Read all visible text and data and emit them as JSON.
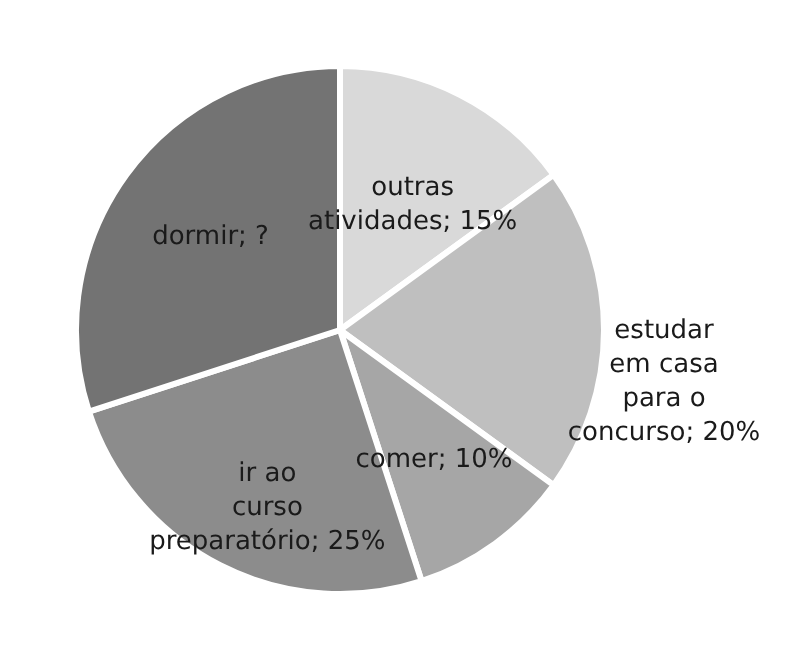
{
  "chart_data": {
    "type": "pie",
    "categories": [
      "outras atividades",
      "estudar em casa para o concurso",
      "comer",
      "ir ao curso preparatório",
      "dormir"
    ],
    "values": [
      15,
      20,
      10,
      25,
      30
    ],
    "value_labels": [
      "15%",
      "20%",
      "10%",
      "25%",
      "?"
    ],
    "colors": [
      "#d9d9d9",
      "#bfbfbf",
      "#a6a6a6",
      "#8c8c8c",
      "#737373"
    ]
  }
}
